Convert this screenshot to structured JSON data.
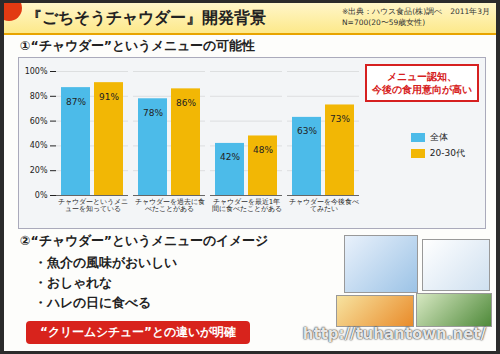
{
  "slide": {
    "title": "『ごちそうチャウダー』開発背景",
    "source": [
      "※出典：ハウス食品(株)調べ　2011年3月",
      "N=700(20〜59歳女性)"
    ],
    "section2": {
      "heading": "②“チャウダー”というメニューのイメージ",
      "bullets": [
        "・魚介の風味がおいしい",
        "・おしゃれな",
        "・ハレの日に食べる"
      ],
      "highlight": "“クリームシチュー”との違いが明確"
    },
    "watermark": "http://tuhantown.net/"
  },
  "chart_data": {
    "type": "bar",
    "title": "①“チャウダー”というメニューの可能性",
    "annotation": [
      "メニュー認知、",
      "今後の食用意向が高い"
    ],
    "categories": [
      "チャウダーというメニューを知っている",
      "チャウダーを過去に食べたことがある",
      "チャウダーを最近1年間に食べたことがある",
      "チャウダーを今後食べてみたい"
    ],
    "series": [
      {
        "name": "全体",
        "color": "#4cbbe9",
        "values": [
          87,
          78,
          42,
          63
        ],
        "value_labels": [
          "87%",
          "78%",
          "42%",
          "63%"
        ]
      },
      {
        "name": "20-30代",
        "color": "#f2b705",
        "values": [
          91,
          86,
          48,
          73
        ],
        "value_labels": [
          "91%",
          "86%",
          "48%",
          "73%"
        ]
      }
    ],
    "ylim": [
      0,
      100
    ],
    "yticks": [
      {
        "value": 0,
        "label": "0%"
      },
      {
        "value": 20,
        "label": "20%"
      },
      {
        "value": 40,
        "label": "40%"
      },
      {
        "value": 60,
        "label": "60%"
      },
      {
        "value": 80,
        "label": "80%"
      },
      {
        "value": 100,
        "label": "100%"
      }
    ],
    "grid": true,
    "data_labels": true,
    "legend": "right"
  }
}
